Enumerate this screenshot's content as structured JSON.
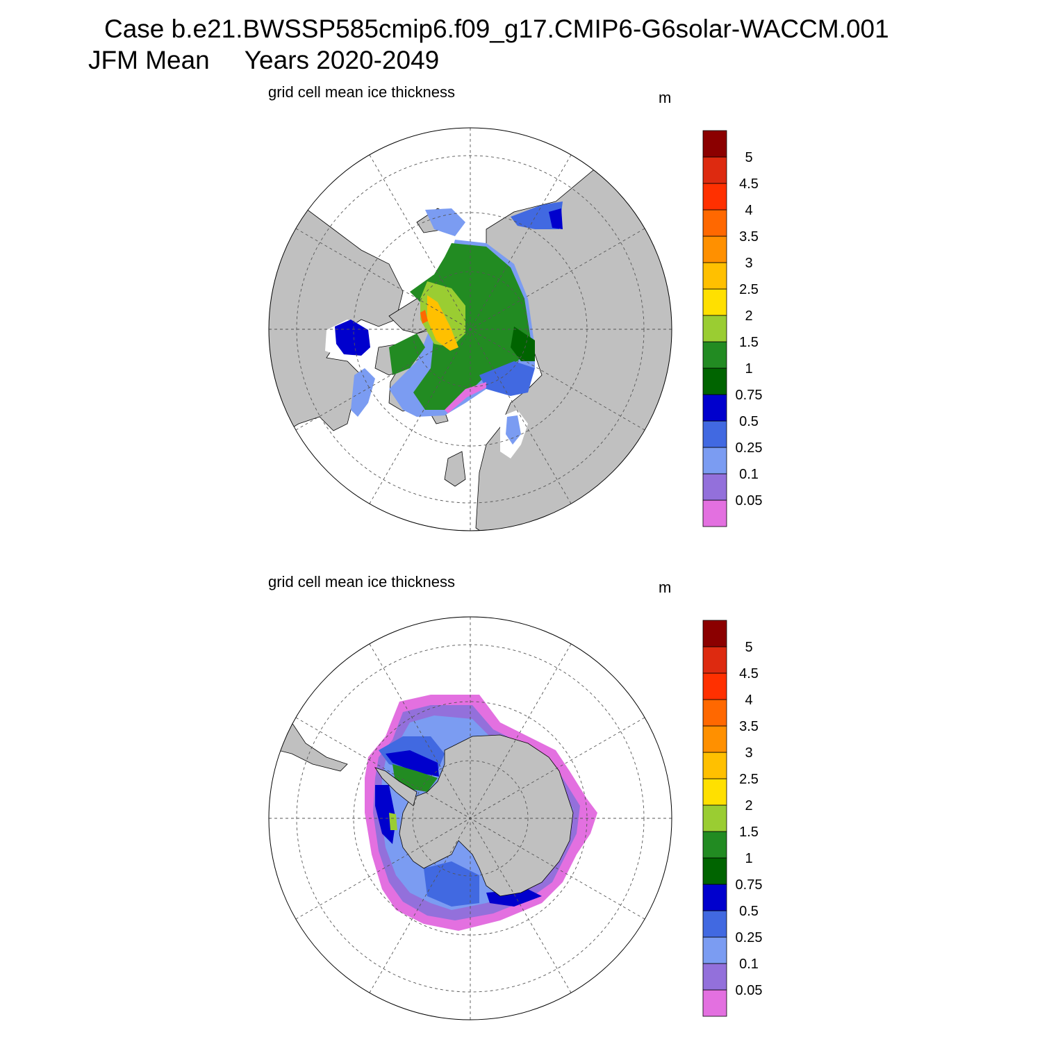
{
  "title": {
    "case_line": "Case b.e21.BWSSP585cmip6.f09_g17.CMIP6-G6solar-WACCM.001",
    "season": "JFM Mean",
    "years": "Years 2020-2049"
  },
  "panels": [
    {
      "id": "north",
      "variable_label": "grid cell mean ice thickness",
      "units": "m",
      "hemisphere": "Northern"
    },
    {
      "id": "south",
      "variable_label": "grid cell mean ice thickness",
      "units": "m",
      "hemisphere": "Southern"
    }
  ],
  "colorbar": {
    "levels": [
      "0.05",
      "0.1",
      "0.25",
      "0.5",
      "0.75",
      "1",
      "1.5",
      "2",
      "2.5",
      "3",
      "3.5",
      "4",
      "4.5",
      "5"
    ],
    "colors": [
      "#e370e0",
      "#9370db",
      "#7b9cf2",
      "#4169e1",
      "#0000cd",
      "#006400",
      "#228b22",
      "#9acd32",
      "#ffe000",
      "#ffc000",
      "#ff9000",
      "#ff6800",
      "#ff3000",
      "#dd2a10",
      "#8b0000"
    ]
  },
  "map_colors": {
    "land": "#c0c0c0",
    "ocean": "#ffffff",
    "grid": "#555555"
  }
}
